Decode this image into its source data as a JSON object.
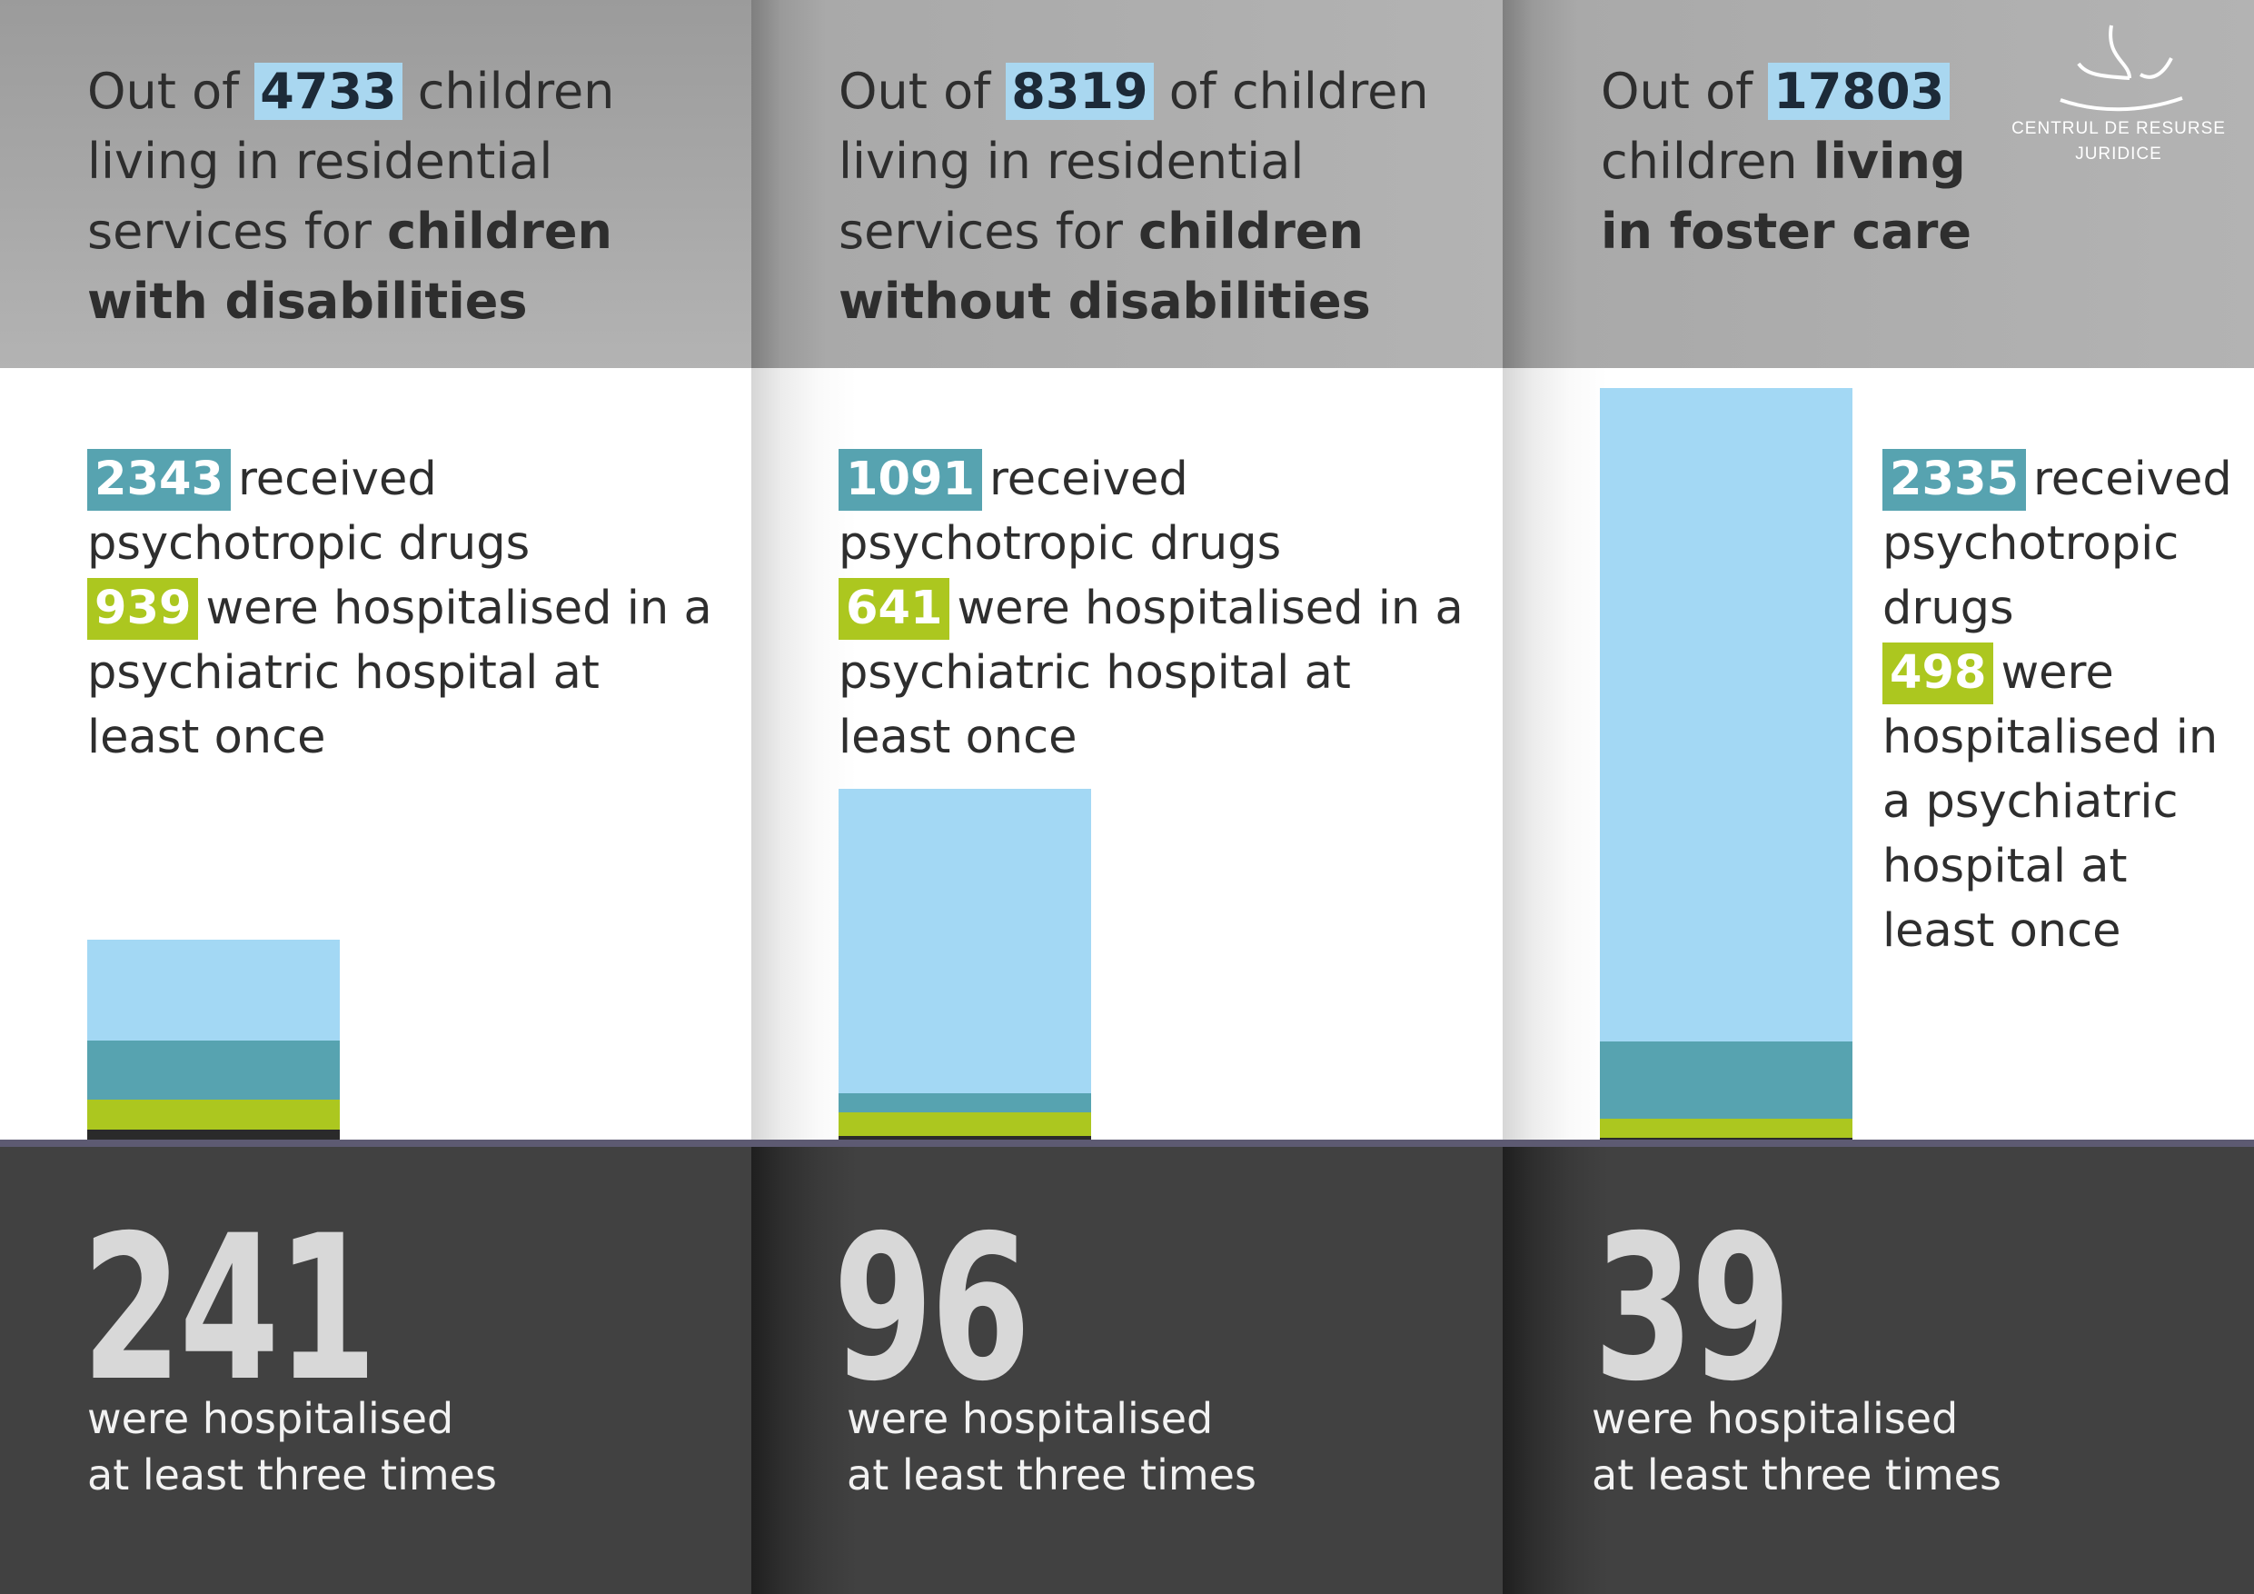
{
  "columns": [
    {
      "headline_prefix": "Out of ",
      "total": "4733",
      "headline_mid": " children living in residential services for ",
      "headline_bold": "children with disabilities",
      "drugs_value": "2343",
      "drugs_text": "received psychotropic drugs",
      "hosp_value": "939",
      "hosp_text": "were hospitalised in a psychiatric hospital at least once",
      "three_times_value": "241",
      "three_times_line1": "were hospitalised",
      "three_times_line2": "at least three times"
    },
    {
      "headline_prefix": "Out of ",
      "total": "8319",
      "headline_mid": " of children living in residential services for ",
      "headline_bold": "children without disabilities",
      "drugs_value": "1091",
      "drugs_text": "received psychotropic drugs",
      "hosp_value": "641",
      "hosp_text": "were hospitalised in a psychiatric hospital at least once",
      "three_times_value": "96",
      "three_times_line1": "were hospitalised",
      "three_times_line2": "at least three times"
    },
    {
      "headline_prefix": "Out of ",
      "total": "17803",
      "headline_mid": " children ",
      "headline_bold": "living in foster care",
      "drugs_value": "2335",
      "drugs_text": "received psychotropic drugs",
      "hosp_value": "498",
      "hosp_text": "were hospitalised in a psychiatric hospital at least once",
      "three_times_value": "39",
      "three_times_line1": "were hospitalised",
      "three_times_line2": "at least three times"
    }
  ],
  "logo": {
    "line1": "CENTRUL DE RESURSE",
    "line2": "JURIDICE"
  },
  "colors": {
    "total": "#a3d8f4",
    "drugs": "#57a3b0",
    "hospitalised_once": "#acc71f",
    "hospitalised_three_times": "#2a2a2a"
  },
  "chart_data": {
    "type": "bar",
    "stacked": true,
    "categories": [
      "children with disabilities",
      "children without disabilities",
      "living in foster care"
    ],
    "series": [
      {
        "values": [
          4733,
          8319,
          17803
        ]
      },
      {
        "values": [
          2343,
          1091,
          2335
        ]
      },
      {
        "values": [
          939,
          641,
          498
        ]
      },
      {
        "values": [
          241,
          96,
          39
        ]
      }
    ]
  }
}
